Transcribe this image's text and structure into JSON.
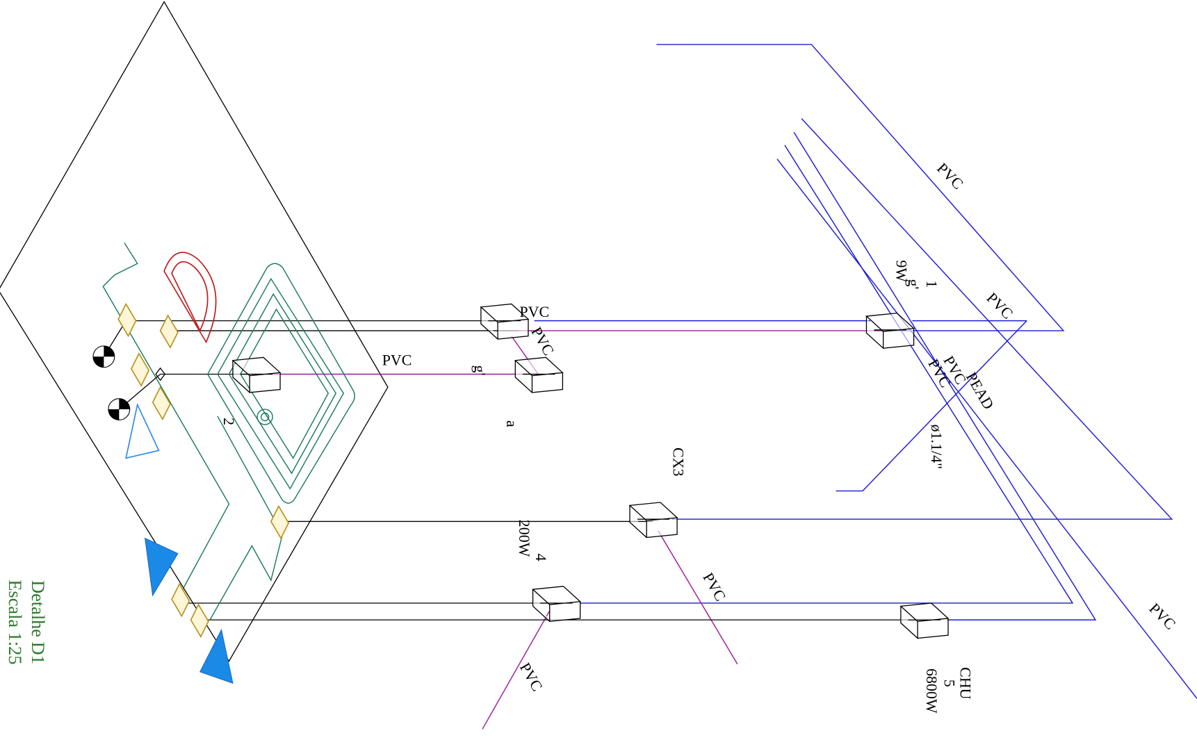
{
  "labels": [
    "PVC",
    "PVC",
    "PVC",
    "PVC",
    "PVC",
    "PVC",
    "PVC",
    "PVC",
    "PVC",
    "PVC",
    "PEAD",
    "ø1.1/4\"",
    "CX3",
    "200W",
    "4",
    "a",
    "g'",
    "2",
    "1",
    "g'",
    "9W",
    "CHU",
    "5",
    "6800W"
  ],
  "title": {
    "name": "Detalhe D1",
    "scale": "Escala 1:25"
  }
}
